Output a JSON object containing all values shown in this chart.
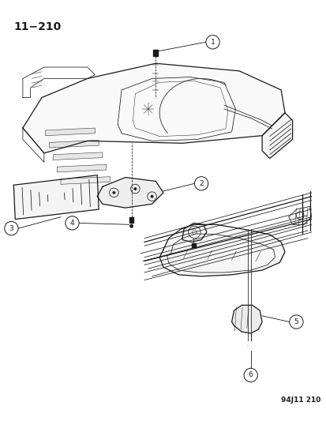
{
  "page_number": "11−210",
  "figure_id": "94J11 210",
  "background_color": "#ffffff",
  "line_color": "#1a1a1a",
  "title_fontsize": 10,
  "fig_id_fontsize": 6.5,
  "callout_fontsize": 6.5,
  "lw_main": 0.9,
  "lw_thin": 0.55,
  "lw_hair": 0.35
}
